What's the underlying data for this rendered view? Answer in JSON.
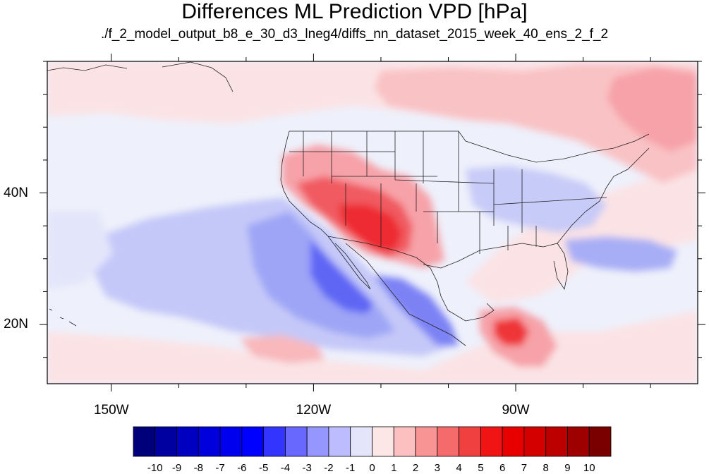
{
  "title": "Differences ML Prediction VPD [hPa]",
  "subtitle": "./f_2_model_output_b8_e_30_d3_lneg4/diffs_nn_dataset_2015_week_40_ens_2_f_2",
  "map": {
    "projection": "cylindrical",
    "lon_range": [
      -159.5,
      -63
    ],
    "lat_range": [
      11,
      60
    ],
    "lon_ticks": [
      -150,
      -120,
      -90
    ],
    "lon_tick_labels": [
      "150W",
      "120W",
      "90W"
    ],
    "lat_ticks": [
      20,
      40
    ],
    "lat_tick_labels": [
      "20N",
      "40N"
    ]
  },
  "colorbar": {
    "labels": [
      "-10",
      "-9",
      "-8",
      "-7",
      "-6",
      "-5",
      "-4",
      "-3",
      "-2",
      "-1",
      "0",
      "1",
      "2",
      "3",
      "4",
      "5",
      "6",
      "7",
      "8",
      "9",
      "10"
    ],
    "colors": [
      "#00007a",
      "#0000a0",
      "#0000c0",
      "#0000dc",
      "#0000ef",
      "#0000ff",
      "#3434ff",
      "#6868ff",
      "#9696ff",
      "#bcbcff",
      "#e4e4fa",
      "#fde6e6",
      "#fcc0c0",
      "#f99494",
      "#f56a6a",
      "#f04040",
      "#f01414",
      "#e80000",
      "#d40000",
      "#bc0000",
      "#9e0000",
      "#7a0000"
    ]
  }
}
